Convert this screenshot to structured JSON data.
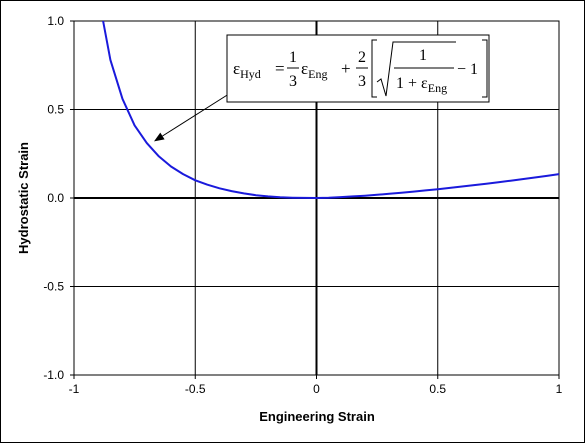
{
  "chart_data": {
    "type": "line",
    "title": "",
    "xlabel": "Engineering Strain",
    "ylabel": "Hydrostatic Strain",
    "xlim": [
      -1,
      1
    ],
    "ylim": [
      -1,
      1
    ],
    "xticks": [
      "-1",
      "-0.5",
      "0",
      "0.5",
      "1"
    ],
    "yticks": [
      "1.0",
      "0.5",
      "0.0",
      "-0.5",
      "-1.0"
    ],
    "grid": true,
    "legend": "none",
    "series": [
      {
        "color": "#1a1adc",
        "x": [
          -0.88,
          -0.85,
          -0.8,
          -0.75,
          -0.7,
          -0.65,
          -0.6,
          -0.55,
          -0.5,
          -0.45,
          -0.4,
          -0.35,
          -0.3,
          -0.25,
          -0.2,
          -0.15,
          -0.1,
          -0.05,
          0,
          0.05,
          0.1,
          0.15,
          0.2,
          0.25,
          0.3,
          0.35,
          0.4,
          0.45,
          0.5,
          0.55,
          0.6,
          0.65,
          0.7,
          0.75,
          0.8,
          0.85,
          0.9,
          0.95,
          1.0
        ],
        "y": [
          1.0,
          0.78,
          0.56,
          0.41,
          0.31,
          0.235,
          0.178,
          0.135,
          0.1,
          0.075,
          0.055,
          0.039,
          0.026,
          0.016,
          0.009,
          0.004,
          0.0015,
          0.0003,
          0,
          0.0017,
          0.005,
          0.009,
          0.013,
          0.018,
          0.024,
          0.03,
          0.036,
          0.043,
          0.05,
          0.057,
          0.065,
          0.073,
          0.081,
          0.089,
          0.098,
          0.107,
          0.116,
          0.125,
          0.135
        ]
      }
    ],
    "annotation": {
      "lhs": "ε",
      "lhs_sub": "Hyd",
      "eq_sign": "=",
      "frac1_num": "1",
      "frac1_den": "3",
      "term1": "ε",
      "term1_sub": "Eng",
      "plus": "+",
      "frac2_num": "2",
      "frac2_den": "3",
      "inner_num": "1",
      "inner_den_pre": "1 + ε",
      "inner_den_sub": "Eng",
      "minus_one": "− 1",
      "arrow_to": [
        -0.67,
        0.32
      ]
    }
  }
}
